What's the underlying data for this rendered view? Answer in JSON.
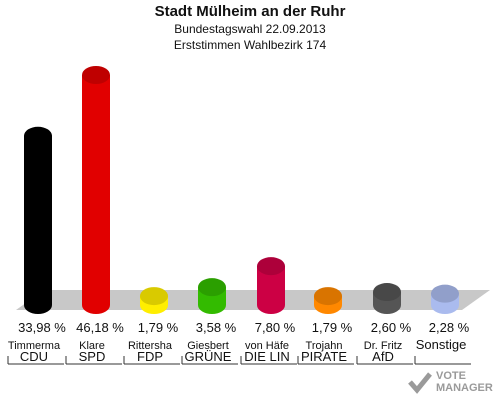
{
  "header": {
    "title": "Stadt Mülheim an der Ruhr",
    "subtitle": "Bundestagswahl 22.09.2013",
    "subtitle2": "Erststimmen Wahlbezirk 174"
  },
  "chart_data": {
    "type": "bar",
    "title": "Stadt Mülheim an der Ruhr",
    "subtitle": "Bundestagswahl 22.09.2013 · Erststimmen Wahlbezirk 174",
    "categories": [
      "CDU",
      "SPD",
      "FDP",
      "GRÜNE",
      "DIE LIN",
      "PIRATE",
      "AfD",
      "Sonstige"
    ],
    "candidates": [
      "Timmerma",
      "Klare",
      "Rittersha",
      "Giesbert",
      "von Häfe",
      "Trojahn",
      "Dr. Fritz",
      ""
    ],
    "values": [
      33.98,
      46.18,
      1.79,
      3.58,
      7.8,
      1.79,
      2.6,
      2.28
    ],
    "value_labels": [
      "33,98 %",
      "46,18 %",
      "1,79 %",
      "3,58 %",
      "7,80 %",
      "1,79 %",
      "2,60 %",
      "2,28 %"
    ],
    "colors": [
      "#000000",
      "#e10000",
      "#ffee00",
      "#33bb00",
      "#cc0044",
      "#ff8800",
      "#555555",
      "#aabbee"
    ],
    "ylim": [
      0,
      50
    ],
    "legend": "none",
    "grid": false
  },
  "watermark": {
    "text_line1": "VOTE",
    "text_line2": "MANAGER"
  }
}
